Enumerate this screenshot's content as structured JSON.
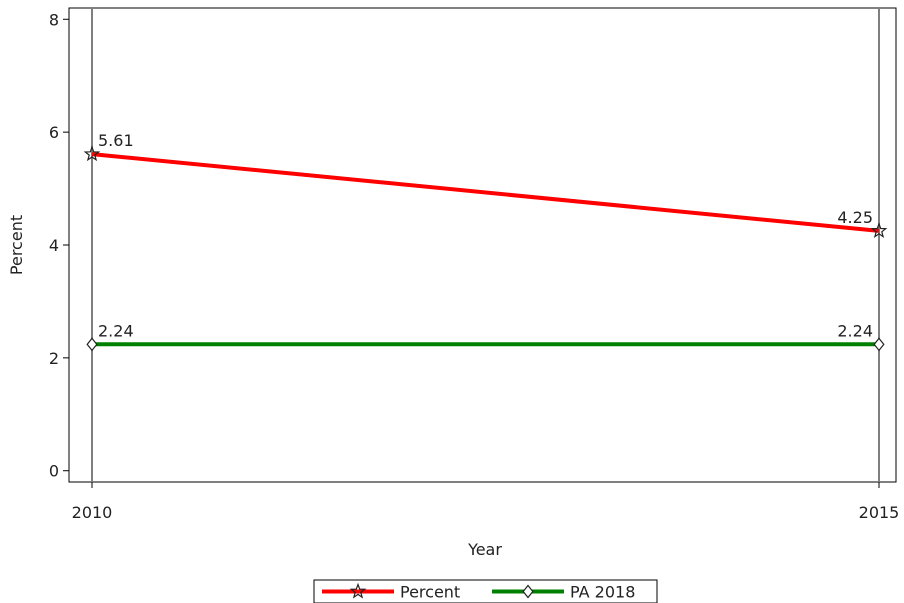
{
  "chart_data": {
    "type": "line",
    "x": [
      2010,
      2015
    ],
    "xlabel": "Year",
    "ylabel": "Percent",
    "xlim": [
      2010,
      2015
    ],
    "ylim": [
      -0.2,
      8.2
    ],
    "yticks": [
      0,
      2,
      4,
      6,
      8
    ],
    "xticks": [
      2010,
      2015
    ],
    "grid": false,
    "reference_lines_x": [
      2010,
      2015
    ],
    "legend_position": "bottom-center",
    "series": [
      {
        "name": "Percent",
        "values": [
          5.61,
          4.25
        ],
        "labels": [
          "5.61",
          "4.25"
        ],
        "color": "#ff0000",
        "marker": "star"
      },
      {
        "name": "PA 2018",
        "values": [
          2.24,
          2.24
        ],
        "labels": [
          "2.24",
          "2.24"
        ],
        "color": "#008000",
        "marker": "diamond"
      }
    ]
  }
}
